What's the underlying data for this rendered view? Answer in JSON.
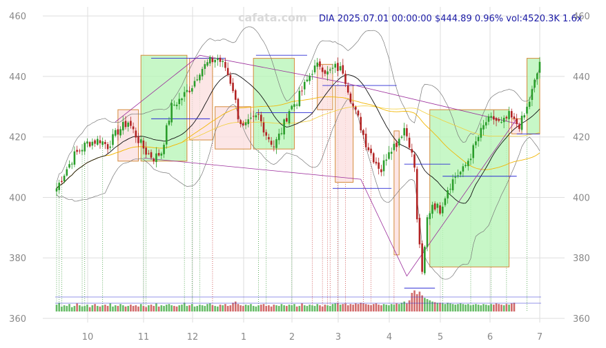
{
  "watermark": "cafata.com",
  "info_line": "DIA 2025.07.01 00:00:00 $444.89 0.96% vol:4520.3K 1.6x",
  "colors": {
    "up": "#2a9d2a",
    "down": "#b22222",
    "vol_up": "#66bb66",
    "vol_down": "#d16b6b",
    "grid": "#dddddd",
    "bollinger": "#777777",
    "ma_short": "#111111",
    "ma_mid": "#f2b705",
    "ma_long": "#f2cf3a",
    "green_box": "#b9f5b9",
    "red_box": "#fbe0e0",
    "box_border": "#d48a3a",
    "pivot_line": "#9a2a9a",
    "level_line": "#2a2ad4",
    "green_mark": "#3a9a3a",
    "red_mark": "#c83a3a"
  },
  "chart_data": {
    "type": "candlestick",
    "symbol": "DIA",
    "ylim": [
      360,
      463
    ],
    "x_tick_labels": [
      "10",
      "11",
      "12",
      "1",
      "2",
      "3",
      "4",
      "5",
      "6",
      "7"
    ],
    "y_tick_labels": [
      "360",
      "380",
      "400",
      "420",
      "440",
      "460"
    ],
    "close_path": [
      [
        0,
        403
      ],
      [
        3,
        408
      ],
      [
        7,
        414
      ],
      [
        12,
        418
      ],
      [
        17,
        419
      ],
      [
        20,
        417
      ],
      [
        24,
        422
      ],
      [
        28,
        425
      ],
      [
        32,
        419
      ],
      [
        35,
        415
      ],
      [
        38,
        413
      ],
      [
        41,
        415
      ],
      [
        45,
        430
      ],
      [
        49,
        433
      ],
      [
        53,
        437
      ],
      [
        56,
        442
      ],
      [
        60,
        445
      ],
      [
        63,
        446
      ],
      [
        66,
        443
      ],
      [
        69,
        436
      ],
      [
        71,
        427
      ],
      [
        73,
        423
      ],
      [
        76,
        425
      ],
      [
        79,
        427
      ],
      [
        82,
        421
      ],
      [
        85,
        417
      ],
      [
        88,
        422
      ],
      [
        91,
        429
      ],
      [
        94,
        432
      ],
      [
        97,
        437
      ],
      [
        100,
        442
      ],
      [
        103,
        444
      ],
      [
        106,
        441
      ],
      [
        109,
        443
      ],
      [
        112,
        442
      ],
      [
        114,
        436
      ],
      [
        116,
        430
      ],
      [
        118,
        426
      ],
      [
        121,
        418
      ],
      [
        124,
        413
      ],
      [
        127,
        409
      ],
      [
        130,
        416
      ],
      [
        133,
        418
      ],
      [
        136,
        423
      ],
      [
        138,
        418
      ],
      [
        140,
        410
      ],
      [
        141,
        392
      ],
      [
        142,
        385
      ],
      [
        143,
        374
      ],
      [
        144,
        383
      ],
      [
        145,
        393
      ],
      [
        147,
        398
      ],
      [
        150,
        396
      ],
      [
        153,
        403
      ],
      [
        156,
        407
      ],
      [
        159,
        409
      ],
      [
        162,
        414
      ],
      [
        165,
        420
      ],
      [
        168,
        425
      ],
      [
        171,
        426
      ],
      [
        174,
        424
      ],
      [
        177,
        427
      ],
      [
        179,
        425
      ],
      [
        181,
        424
      ],
      [
        183,
        427
      ],
      [
        185,
        432
      ],
      [
        187,
        438
      ],
      [
        188,
        441
      ],
      [
        189,
        445
      ]
    ],
    "volume": [
      11,
      14,
      8,
      10,
      9,
      12,
      7,
      9,
      13,
      10,
      8,
      9,
      11,
      7,
      10,
      12,
      9,
      8,
      10,
      11,
      9,
      13,
      8,
      10,
      9,
      12,
      10,
      8,
      9,
      11,
      9,
      10,
      8,
      12,
      9,
      7,
      10,
      11,
      9,
      13,
      8,
      10,
      9,
      11,
      12,
      10,
      9,
      8,
      10,
      11,
      14,
      9,
      10,
      12,
      8,
      9,
      11,
      10,
      9,
      12,
      13,
      10,
      9,
      8,
      11,
      10,
      12,
      9,
      10,
      14,
      16,
      12,
      10,
      9,
      11,
      10,
      12,
      9,
      8,
      10,
      11,
      12,
      9,
      10,
      8,
      11,
      10,
      9,
      12,
      10,
      9,
      11,
      10,
      12,
      8,
      9,
      13,
      10,
      9,
      11,
      10,
      9,
      12,
      10,
      8,
      11,
      10,
      9,
      12,
      13,
      14,
      11,
      12,
      13,
      10,
      12,
      11,
      13,
      12,
      14,
      13,
      12,
      11,
      10,
      12,
      13,
      11,
      10,
      12,
      11,
      10,
      12,
      11,
      13,
      12,
      14,
      16,
      13,
      18,
      30,
      34,
      28,
      32,
      26,
      22,
      20,
      18,
      16,
      15,
      14,
      14,
      13,
      12,
      14,
      13,
      12,
      11,
      12,
      13,
      12,
      11,
      12,
      10,
      11,
      12,
      11,
      10,
      12,
      11,
      10,
      12,
      11,
      13,
      12,
      11,
      10,
      12,
      11,
      13,
      14
    ],
    "boxes": [
      {
        "from": 24,
        "to": 32,
        "low": 412,
        "high": 429,
        "color": "red"
      },
      {
        "from": 33,
        "to": 51,
        "low": 412,
        "high": 447,
        "color": "green"
      },
      {
        "from": 52,
        "to": 61,
        "low": 419,
        "high": 446,
        "color": "red"
      },
      {
        "from": 62,
        "to": 76,
        "low": 416,
        "high": 430,
        "color": "red"
      },
      {
        "from": 77,
        "to": 93,
        "low": 416,
        "high": 446,
        "color": "green"
      },
      {
        "from": 102,
        "to": 108,
        "low": 429,
        "high": 444,
        "color": "red"
      },
      {
        "from": 109,
        "to": 116,
        "low": 405,
        "high": 437,
        "color": "red"
      },
      {
        "from": 132,
        "to": 134,
        "low": 381,
        "high": 422,
        "color": "red"
      },
      {
        "from": 146,
        "to": 177,
        "low": 377,
        "high": 429,
        "color": "green"
      },
      {
        "from": 178,
        "to": 182,
        "low": 421,
        "high": 426,
        "color": "red"
      },
      {
        "from": 184,
        "to": 189,
        "low": 421,
        "high": 446,
        "color": "green"
      }
    ],
    "levels": [
      {
        "from": 37,
        "to": 66,
        "y": 446
      },
      {
        "from": 37,
        "to": 60,
        "y": 426
      },
      {
        "from": 78,
        "to": 98,
        "y": 447
      },
      {
        "from": 78,
        "to": 100,
        "y": 428
      },
      {
        "from": 104,
        "to": 133,
        "y": 437
      },
      {
        "from": 108,
        "to": 131,
        "y": 403
      },
      {
        "from": 136,
        "to": 154,
        "y": 411
      },
      {
        "from": 136,
        "to": 148,
        "y": 370
      },
      {
        "from": 151,
        "to": 180,
        "y": 407
      },
      {
        "from": 180,
        "to": 189,
        "y": 421
      }
    ],
    "pivot_lines": [
      [
        [
          23,
          425
        ],
        [
          56,
          447
        ],
        [
          112,
          438
        ],
        [
          182,
          424
        ]
      ],
      [
        [
          34,
          413
        ],
        [
          119,
          406
        ],
        [
          137,
          374
        ],
        [
          180,
          426
        ]
      ]
    ],
    "vmarks": {
      "green": [
        0,
        1,
        2,
        10,
        11,
        18,
        34,
        35,
        50,
        53,
        56,
        79,
        82,
        92,
        151,
        162,
        170,
        176,
        184
      ],
      "red": [
        61,
        100,
        104,
        106,
        107,
        110,
        113,
        120,
        123,
        132
      ]
    }
  }
}
